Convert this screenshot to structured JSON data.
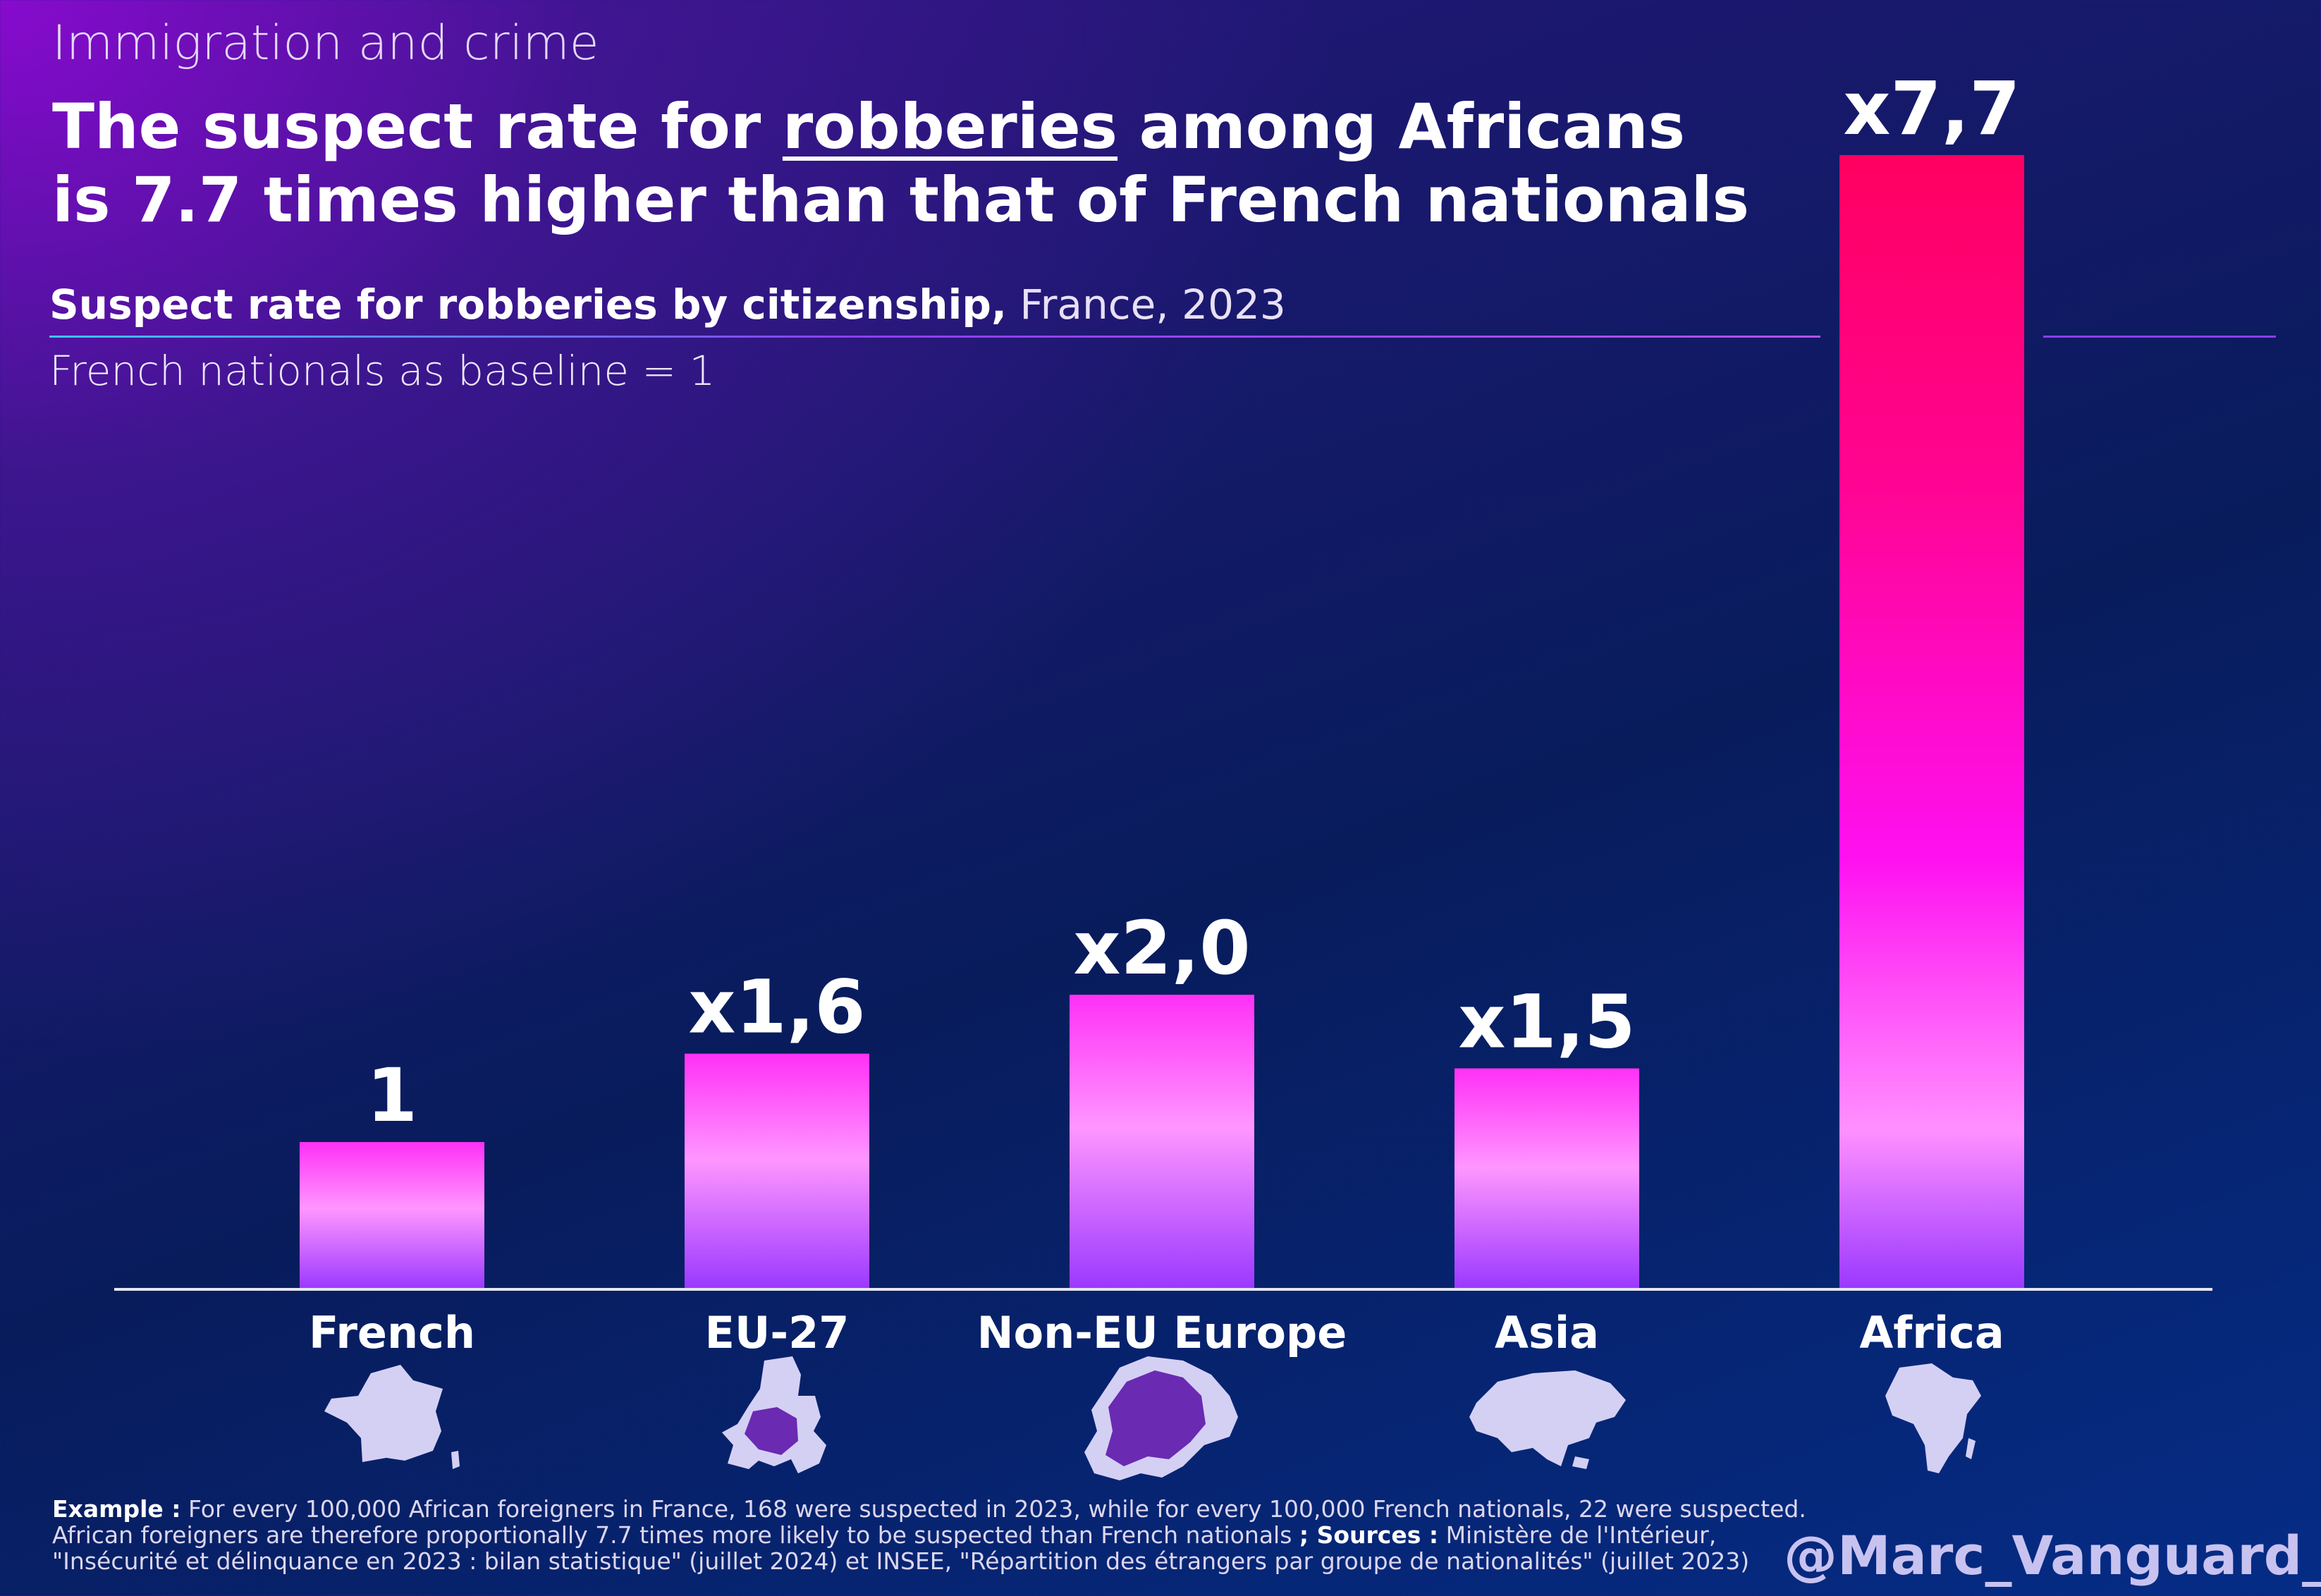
{
  "header": {
    "kicker": "Immigration and crime",
    "headline_part1": "The suspect rate for ",
    "headline_underlined": "robberies",
    "headline_part2": " among Africans is 7.7 times higher than that of French nationals",
    "subtitle_bold": "Suspect rate for robberies by citizenship,",
    "subtitle_light": " France, 2023",
    "baseline_note": "French nationals as baseline = 1"
  },
  "chart_data": {
    "type": "bar",
    "categories": [
      "French",
      "EU-27",
      "Non-EU Europe",
      "Asia",
      "Africa"
    ],
    "values": [
      1,
      1.6,
      2.0,
      1.5,
      7.7
    ],
    "data_labels": [
      "1",
      "x1,6",
      "x2,0",
      "x1,5",
      "x7,7"
    ],
    "ylim": [
      0,
      7.7
    ],
    "grid": false,
    "legend": "none",
    "icons": [
      "france-map-icon",
      "eu27-map-icon",
      "europe-map-icon",
      "asia-map-icon",
      "africa-map-icon"
    ],
    "colors": {
      "top": "#ff0060",
      "mid": "#ff10f0",
      "light": "#ff90ff",
      "bottom": "#9a38ff",
      "axis": "#e6e6f2",
      "icon_fill": "#d4d0f4",
      "icon_highlight": "#6a2ab2"
    }
  },
  "footer": {
    "example_label": "Example :",
    "example_text": " For every 100,000 African foreigners in France, 168 were suspected in 2023, while for every 100,000 French nationals, 22 were suspected. African foreigners are therefore proportionally 7.7 times more likely to be suspected than French nationals ",
    "sources_label": "; Sources :",
    "sources_text": " Ministère de l'Intérieur, \"Insécurité et délinquance en 2023 : bilan statistique\" (juillet 2024) et INSEE, \"Répartition des étrangers par groupe de nationalités\" (juillet 2023)",
    "handle": "@Marc_Vanguard_i"
  }
}
